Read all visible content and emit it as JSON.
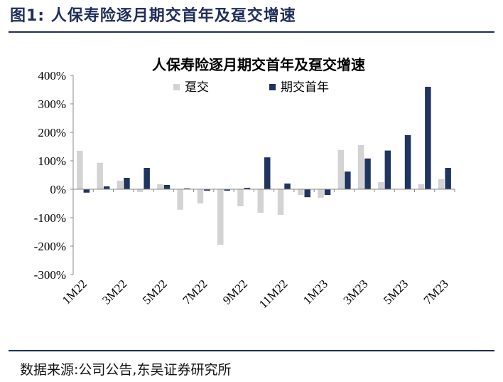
{
  "figure": {
    "label": "图1:",
    "title": "人保寿险逐月期交首年及趸交增速",
    "source": "数据来源:公司公告,东吴证券研究所"
  },
  "colors": {
    "series_1": "#d3d3d3",
    "series_2": "#1f3560",
    "frame": "#1f2f5a"
  },
  "chart_data": {
    "type": "bar",
    "title": "人保寿险逐月期交首年及趸交增速",
    "categories": [
      "1M22",
      "2M22",
      "3M22",
      "4M22",
      "5M22",
      "6M22",
      "7M22",
      "8M22",
      "9M22",
      "10M22",
      "11M22",
      "12M22",
      "1M23",
      "2M23",
      "3M23",
      "4M23",
      "5M23",
      "6M23",
      "7M23"
    ],
    "x_tick_labels": [
      "1M22",
      "",
      "3M22",
      "",
      "5M22",
      "",
      "7M22",
      "",
      "9M22",
      "",
      "11M22",
      "",
      "1M23",
      "",
      "3M23",
      "",
      "5M23",
      "",
      "7M23"
    ],
    "series": [
      {
        "name": "趸交",
        "values": [
          135,
          93,
          30,
          -10,
          18,
          -72,
          -50,
          -195,
          -60,
          -83,
          -90,
          -20,
          -30,
          138,
          155,
          25,
          0,
          18,
          35
        ]
      },
      {
        "name": "期交首年",
        "values": [
          -12,
          10,
          40,
          75,
          15,
          3,
          -5,
          -5,
          5,
          112,
          20,
          -28,
          -20,
          62,
          108,
          136,
          190,
          360,
          75
        ]
      }
    ],
    "ylim": [
      -300,
      400
    ],
    "yticks": [
      -300,
      -200,
      -100,
      0,
      100,
      200,
      300,
      400
    ],
    "ytick_labels": [
      "-300%",
      "-200%",
      "-100%",
      "0%",
      "100%",
      "200%",
      "300%",
      "400%"
    ],
    "xlabel": "",
    "ylabel": "",
    "legend": "top-center",
    "grid": false
  }
}
